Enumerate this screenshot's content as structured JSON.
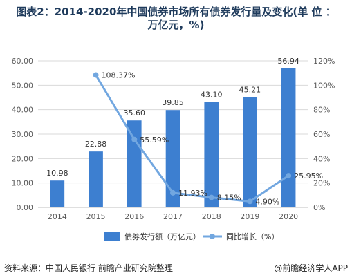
{
  "header": {
    "title_line1": "图表2：2014-2020年中国债券市场所有债券发行量及变化(单 位 ：",
    "title_line2": "万亿元，%)"
  },
  "footer": {
    "source": "资料来源：中国人民银行 前瞻产业研究院整理",
    "credit": "@前瞻经济学人APP"
  },
  "colors": {
    "bar": "#3d7fd0",
    "line": "#72a7e0",
    "grid": "#d9d9d9",
    "axis_text": "#595959"
  },
  "chart_data": {
    "type": "bar",
    "categories": [
      "2014",
      "2015",
      "2016",
      "2017",
      "2018",
      "2019",
      "2020"
    ],
    "series": [
      {
        "name": "债券发行额（万亿元）",
        "type": "bar",
        "axis": "left",
        "values": [
          10.98,
          22.88,
          35.6,
          39.85,
          43.1,
          45.21,
          56.94
        ],
        "labels": [
          "10.98",
          "22.88",
          "35.60",
          "39.85",
          "43.10",
          "45.21",
          "56.94"
        ]
      },
      {
        "name": "同比增长（%）",
        "type": "line",
        "axis": "right",
        "values": [
          null,
          108.37,
          55.59,
          11.93,
          8.15,
          4.9,
          25.95
        ],
        "labels": [
          "",
          "108.37%",
          "55.59%",
          "11.93%",
          "8.15%",
          "4.90%",
          "25.95%"
        ]
      }
    ],
    "y_left": {
      "min": 0,
      "max": 60,
      "ticks": [
        "0.00",
        "10.00",
        "20.00",
        "30.00",
        "40.00",
        "50.00",
        "60.00"
      ]
    },
    "y_right": {
      "min": 0,
      "max": 120,
      "ticks": [
        "0%",
        "20%",
        "40%",
        "60%",
        "80%",
        "100%",
        "120%"
      ]
    },
    "grid": true,
    "legend_position": "bottom"
  }
}
